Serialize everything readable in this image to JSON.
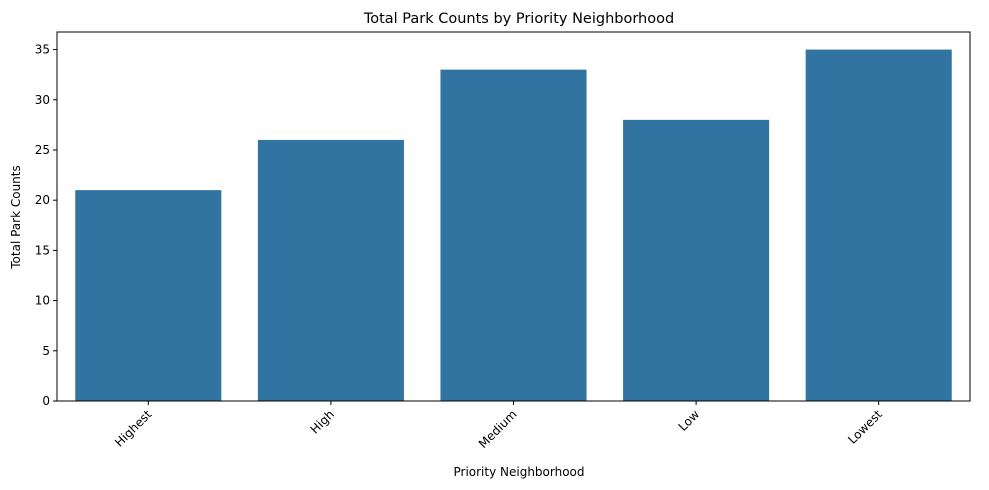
{
  "chart_data": {
    "type": "bar",
    "title": "Total Park Counts by Priority Neighborhood",
    "xlabel": "Priority Neighborhood",
    "ylabel": "Total Park Counts",
    "categories": [
      "Highest",
      "High",
      "Medium",
      "Low",
      "Lowest"
    ],
    "values": [
      21,
      26,
      33,
      28,
      35
    ],
    "ylim": [
      0,
      36.75
    ],
    "yticks": [
      0,
      5,
      10,
      15,
      20,
      25,
      30,
      35
    ],
    "grid": false,
    "bar_color": "#3274a1"
  }
}
